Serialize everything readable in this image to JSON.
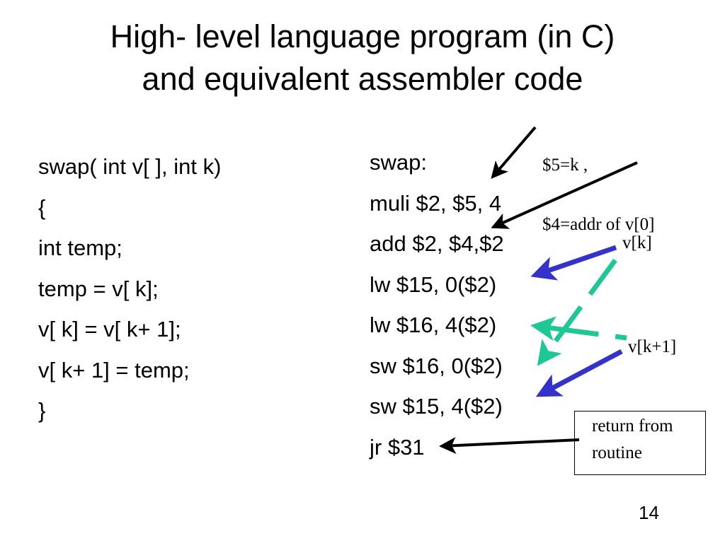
{
  "title": {
    "line1": "High- level language program (in C)",
    "line2": "and equivalent assembler code"
  },
  "c_code": [
    "swap( int v[ ], int k)",
    "{",
    "int temp;",
    "temp = v[ k];",
    "v[ k] = v[ k+ 1];",
    "v[ k+ 1] = temp;",
    "}"
  ],
  "asm_code": [
    "swap:",
    "muli $2, $5, 4",
    "add $2, $4,$2",
    "lw $15, 0($2)",
    "lw $16, 4($2)",
    "sw $16, 0($2)",
    "sw $15, 4($2)",
    "jr $31"
  ],
  "annotations": {
    "regs_line1": "$5=k ,",
    "regs_line2": "$4=addr of v[0]",
    "vk": "v[k]",
    "vk1": "v[k+1]",
    "return_line1": "return from",
    "return_line2": "routine"
  },
  "colors": {
    "blue_arrow": "#3333cc",
    "green_arrow": "#1ec896",
    "black_arrow": "#000000"
  },
  "page_number": "14"
}
